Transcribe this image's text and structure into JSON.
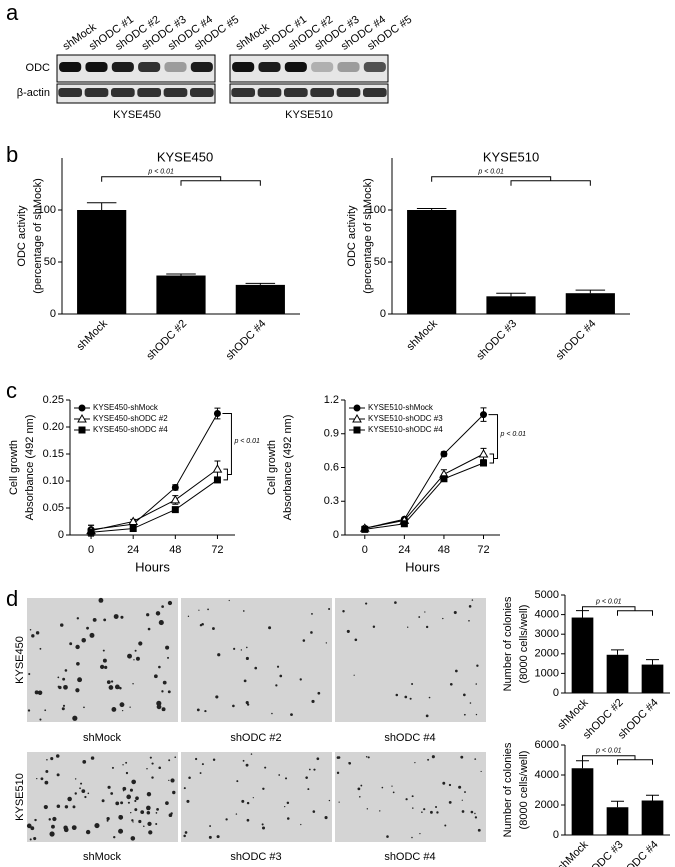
{
  "panels": [
    "a",
    "b",
    "c",
    "d"
  ],
  "blot": {
    "lanes": [
      "shMock",
      "shODC #1",
      "shODC #2",
      "shODC #3",
      "shODC #4",
      "shODC #5"
    ],
    "rows": [
      "ODC",
      "β-actin"
    ],
    "cell_lines": [
      "KYSE450",
      "KYSE510"
    ]
  },
  "colony_images": {
    "rows": [
      {
        "label": "KYSE450",
        "captions": [
          "shMock",
          "shODC #2",
          "shODC #4"
        ]
      },
      {
        "label": "KYSE510",
        "captions": [
          "shMock",
          "shODC #3",
          "shODC #4"
        ]
      }
    ]
  },
  "chart_data": [
    {
      "type": "bar",
      "title": "KYSE450",
      "ylabel": [
        "ODC activity",
        "(percentage of shMock)"
      ],
      "categories": [
        "shMock",
        "shODC #2",
        "shODC #4"
      ],
      "values": [
        100,
        37,
        28
      ],
      "errors": [
        7,
        1.5,
        1.5
      ],
      "color": "#000000",
      "ylim": [
        0,
        150
      ],
      "yticks": [
        0,
        50,
        100
      ],
      "annotation": "p < 0.01"
    },
    {
      "type": "bar",
      "title": "KYSE510",
      "ylabel": [
        "ODC activity",
        "(percentage of shMock)"
      ],
      "categories": [
        "shMock",
        "shODC #3",
        "shODC #4"
      ],
      "values": [
        100,
        17,
        20
      ],
      "errors": [
        1.5,
        3,
        3
      ],
      "color": "#000000",
      "ylim": [
        0,
        150
      ],
      "yticks": [
        0,
        50,
        100
      ],
      "annotation": "p < 0.01"
    },
    {
      "type": "line",
      "ylabel": [
        "Cell growth",
        "Absorbance (492 nm)"
      ],
      "xlabel": "Hours",
      "x": [
        0,
        24,
        48,
        72
      ],
      "xlim": [
        -12,
        82
      ],
      "xticks": [
        0,
        24,
        48,
        72
      ],
      "ylim": [
        0,
        0.25
      ],
      "yticks": [
        0,
        0.05,
        {
          "value": 0.1,
          "label": "0.10"
        },
        0.15,
        {
          "value": 0.2,
          "label": "0.20"
        },
        0.25
      ],
      "series": [
        {
          "name": "KYSE450-shMock",
          "color": "#000000",
          "marker": "circle",
          "filled": true,
          "values": [
            0.01,
            0.02,
            0.088,
            0.225
          ],
          "errors": [
            0.008,
            0.004,
            0.005,
            0.01
          ]
        },
        {
          "name": "KYSE450-shODC #2",
          "color": "#000000",
          "marker": "triangle",
          "filled": false,
          "values": [
            0.008,
            0.025,
            0.065,
            0.122
          ],
          "errors": [
            0.01,
            0.004,
            0.008,
            0.015
          ]
        },
        {
          "name": "KYSE450-shODC #4",
          "color": "#000000",
          "marker": "square",
          "filled": true,
          "values": [
            0.005,
            0.012,
            0.047,
            0.102
          ],
          "errors": [
            0.004,
            0.003,
            0.003,
            0.004
          ]
        }
      ],
      "annotation": "p < 0.01"
    },
    {
      "type": "line",
      "ylabel": [
        "Cell growth",
        "Absorbance (492 nm)"
      ],
      "xlabel": "Hours",
      "x": [
        0,
        24,
        48,
        72
      ],
      "xlim": [
        -12,
        82
      ],
      "xticks": [
        0,
        24,
        48,
        72
      ],
      "ylim": [
        0,
        1.2
      ],
      "yticks": [
        0,
        0.3,
        0.6,
        0.9,
        1.2
      ],
      "series": [
        {
          "name": "KYSE510-shMock",
          "color": "#000000",
          "marker": "circle",
          "filled": true,
          "values": [
            0.06,
            0.14,
            0.72,
            1.07
          ],
          "errors": [
            0.01,
            0.01,
            0.02,
            0.06
          ]
        },
        {
          "name": "KYSE510-shODC #3",
          "color": "#000000",
          "marker": "triangle",
          "filled": false,
          "values": [
            0.06,
            0.13,
            0.54,
            0.72
          ],
          "errors": [
            0.01,
            0.01,
            0.04,
            0.05
          ]
        },
        {
          "name": "KYSE510-shODC #4",
          "color": "#000000",
          "marker": "square",
          "filled": true,
          "values": [
            0.05,
            0.1,
            0.5,
            0.64
          ],
          "errors": [
            0.01,
            0.01,
            0.02,
            0.02
          ]
        }
      ],
      "annotation": "p < 0.01"
    },
    {
      "type": "bar",
      "ylabel": [
        "Number of colonies",
        "(8000 cells/well)"
      ],
      "categories": [
        "shMock",
        "shODC #2",
        "shODC #4"
      ],
      "values": [
        3850,
        1950,
        1450
      ],
      "errors": [
        350,
        250,
        250
      ],
      "color": "#000000",
      "ylim": [
        0,
        5000
      ],
      "yticks": [
        0,
        1000,
        2000,
        3000,
        4000,
        5000
      ],
      "annotation": "p < 0.01"
    },
    {
      "type": "bar",
      "ylabel": [
        "Number of colonies",
        "(8000 cells/well)"
      ],
      "categories": [
        "shMock",
        "shODC #3",
        "shODC #4"
      ],
      "values": [
        4450,
        1850,
        2300
      ],
      "errors": [
        500,
        400,
        350
      ],
      "color": "#000000",
      "ylim": [
        0,
        6000
      ],
      "yticks": [
        0,
        2000,
        4000,
        6000
      ],
      "annotation": "p < 0.01"
    }
  ]
}
